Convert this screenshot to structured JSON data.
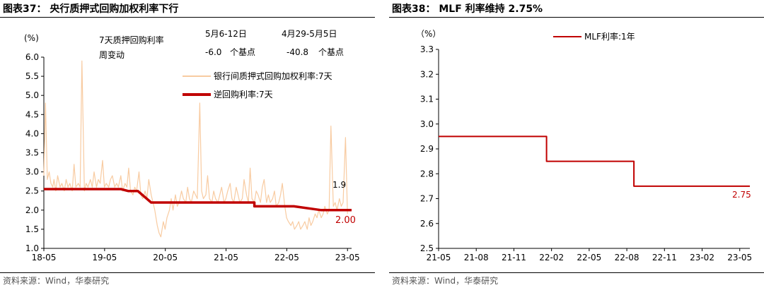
{
  "left": {
    "title": "图表37：  央行质押式回购加权利率下行",
    "source": "资料来源：Wind，华泰研究",
    "unit": "(%)",
    "stats": {
      "header_line1": "7天质押回购利率",
      "header_line2": "周变动",
      "col1_label": "5月6-12日",
      "col1_value": "-6.0",
      "col2_label": "4月29-5月5日",
      "col2_value": "-40.8",
      "unit_label": "个基点"
    },
    "end_labels": {
      "series1": "1.9",
      "series2": "2.00"
    }
  },
  "right": {
    "title": "图表38：  MLF 利率维持 2.75%",
    "source": "资料来源：Wind，华泰研究",
    "unit": "（%）",
    "end_label": "2.75"
  },
  "colors": {
    "primary": "#c00000",
    "secondary": "#f8cba1",
    "axis": "#000000"
  },
  "chart_data": [
    {
      "type": "line",
      "title": "央行质押式回购加权利率下行",
      "ylabel": "(%)",
      "ylim": [
        1.0,
        6.0
      ],
      "yticks": [
        "1.0",
        "1.5",
        "2.0",
        "2.5",
        "3.0",
        "3.5",
        "4.0",
        "4.5",
        "5.0",
        "5.5",
        "6.0"
      ],
      "xlim": [
        2018.333,
        2023.4
      ],
      "xticks": [
        {
          "label": "18-05",
          "x": 2018.333
        },
        {
          "label": "19-05",
          "x": 2019.333
        },
        {
          "label": "20-05",
          "x": 2020.333
        },
        {
          "label": "21-05",
          "x": 2021.333
        },
        {
          "label": "22-05",
          "x": 2022.333
        },
        {
          "label": "23-05",
          "x": 2023.333
        }
      ],
      "legend_position": "top-right",
      "series": [
        {
          "name": "银行间质押式回购加权利率:7天",
          "x": [
            2018.333,
            2018.36,
            2018.39,
            2018.42,
            2018.45,
            2018.48,
            2018.5,
            2018.53,
            2018.56,
            2018.6,
            2018.63,
            2018.67,
            2018.7,
            2018.73,
            2018.76,
            2018.8,
            2018.83,
            2018.86,
            2018.9,
            2018.93,
            2018.96,
            2019.0,
            2019.03,
            2019.06,
            2019.1,
            2019.13,
            2019.16,
            2019.2,
            2019.23,
            2019.26,
            2019.3,
            2019.33,
            2019.36,
            2019.4,
            2019.43,
            2019.46,
            2019.5,
            2019.53,
            2019.56,
            2019.6,
            2019.63,
            2019.67,
            2019.7,
            2019.73,
            2019.76,
            2019.8,
            2019.83,
            2019.86,
            2019.9,
            2019.93,
            2019.96,
            2020.0,
            2020.03,
            2020.06,
            2020.1,
            2020.13,
            2020.16,
            2020.2,
            2020.23,
            2020.26,
            2020.3,
            2020.33,
            2020.36,
            2020.4,
            2020.43,
            2020.46,
            2020.5,
            2020.53,
            2020.56,
            2020.6,
            2020.63,
            2020.67,
            2020.7,
            2020.73,
            2020.76,
            2020.8,
            2020.83,
            2020.86,
            2020.9,
            2020.93,
            2020.96,
            2021.0,
            2021.03,
            2021.06,
            2021.1,
            2021.13,
            2021.16,
            2021.2,
            2021.23,
            2021.26,
            2021.3,
            2021.33,
            2021.36,
            2021.4,
            2021.43,
            2021.46,
            2021.5,
            2021.53,
            2021.56,
            2021.6,
            2021.63,
            2021.67,
            2021.7,
            2021.73,
            2021.76,
            2021.8,
            2021.83,
            2021.86,
            2021.9,
            2021.93,
            2021.96,
            2022.0,
            2022.03,
            2022.06,
            2022.1,
            2022.13,
            2022.16,
            2022.2,
            2022.23,
            2022.26,
            2022.3,
            2022.33,
            2022.36,
            2022.4,
            2022.43,
            2022.46,
            2022.5,
            2022.53,
            2022.56,
            2022.6,
            2022.63,
            2022.67,
            2022.7,
            2022.73,
            2022.76,
            2022.8,
            2022.83,
            2022.86,
            2022.9,
            2022.93,
            2022.96,
            2023.0,
            2023.03,
            2023.06,
            2023.1,
            2023.13,
            2023.16,
            2023.2,
            2023.23,
            2023.26,
            2023.3,
            2023.333
          ],
          "y": [
            2.9,
            4.8,
            2.8,
            3.0,
            2.7,
            2.6,
            2.8,
            2.5,
            2.9,
            2.6,
            2.7,
            2.5,
            2.8,
            2.6,
            2.7,
            2.5,
            3.2,
            2.6,
            2.7,
            2.6,
            5.9,
            2.5,
            2.7,
            2.6,
            2.8,
            2.6,
            3.0,
            2.6,
            2.8,
            2.7,
            3.3,
            2.6,
            2.7,
            2.6,
            2.8,
            2.9,
            2.6,
            2.7,
            2.6,
            2.9,
            2.5,
            2.7,
            2.6,
            3.1,
            2.5,
            2.4,
            2.6,
            2.5,
            3.0,
            2.4,
            2.3,
            2.5,
            2.3,
            2.8,
            2.4,
            2.2,
            2.0,
            1.6,
            1.4,
            1.3,
            1.7,
            1.5,
            1.8,
            2.0,
            2.3,
            2.0,
            2.4,
            2.1,
            2.2,
            2.5,
            2.3,
            2.2,
            2.6,
            2.3,
            2.2,
            2.5,
            2.4,
            2.3,
            4.8,
            2.5,
            2.3,
            2.4,
            2.9,
            2.3,
            2.2,
            2.5,
            2.3,
            2.2,
            2.4,
            2.6,
            2.2,
            2.3,
            2.5,
            2.7,
            2.3,
            2.2,
            2.6,
            2.4,
            2.2,
            2.3,
            2.8,
            2.4,
            2.2,
            3.1,
            2.3,
            2.2,
            2.5,
            2.4,
            2.2,
            2.6,
            2.8,
            2.2,
            2.4,
            2.2,
            2.3,
            2.5,
            2.1,
            2.2,
            2.4,
            2.7,
            2.1,
            1.8,
            1.7,
            1.6,
            1.7,
            1.5,
            1.6,
            1.7,
            1.5,
            1.6,
            1.7,
            1.5,
            1.8,
            1.6,
            1.7,
            1.9,
            1.8,
            2.0,
            1.8,
            1.9,
            2.1,
            1.9,
            2.0,
            4.2,
            2.1,
            2.2,
            2.0,
            2.3,
            2.1,
            2.2,
            3.9,
            1.9
          ]
        },
        {
          "name": "逆回购利率:7天",
          "x": [
            2018.333,
            2019.6,
            2019.6,
            2019.72,
            2019.72,
            2019.88,
            2019.88,
            2020.1,
            2020.1,
            2021.8,
            2021.8,
            2022.0,
            2022.0,
            2022.45,
            2022.45,
            2022.9,
            2022.9,
            2023.4
          ],
          "y": [
            2.55,
            2.55,
            2.55,
            2.5,
            2.5,
            2.5,
            2.5,
            2.2,
            2.2,
            2.2,
            2.1,
            2.1,
            2.1,
            2.1,
            2.1,
            2.0,
            2.0,
            2.0
          ]
        }
      ]
    },
    {
      "type": "line",
      "title": "MLF 利率维持 2.75%",
      "ylabel": "（%）",
      "ylim": [
        2.5,
        3.3
      ],
      "yticks": [
        "2.5",
        "2.6",
        "2.7",
        "2.8",
        "2.9",
        "3.0",
        "3.1",
        "3.2",
        "3.3"
      ],
      "xlim": [
        2021.333,
        2023.4
      ],
      "xticks": [
        {
          "label": "21-05",
          "x": 2021.333
        },
        {
          "label": "21-08",
          "x": 2021.583
        },
        {
          "label": "21-11",
          "x": 2021.833
        },
        {
          "label": "22-02",
          "x": 2022.083
        },
        {
          "label": "22-05",
          "x": 2022.333
        },
        {
          "label": "22-08",
          "x": 2022.583
        },
        {
          "label": "22-11",
          "x": 2022.833
        },
        {
          "label": "23-02",
          "x": 2023.083
        },
        {
          "label": "23-05",
          "x": 2023.333
        }
      ],
      "legend_position": "top",
      "series": [
        {
          "name": "MLF利率:1年",
          "x": [
            2021.333,
            2022.05,
            2022.05,
            2022.63,
            2022.63,
            2023.4
          ],
          "y": [
            2.95,
            2.95,
            2.85,
            2.85,
            2.75,
            2.75
          ]
        }
      ]
    }
  ]
}
